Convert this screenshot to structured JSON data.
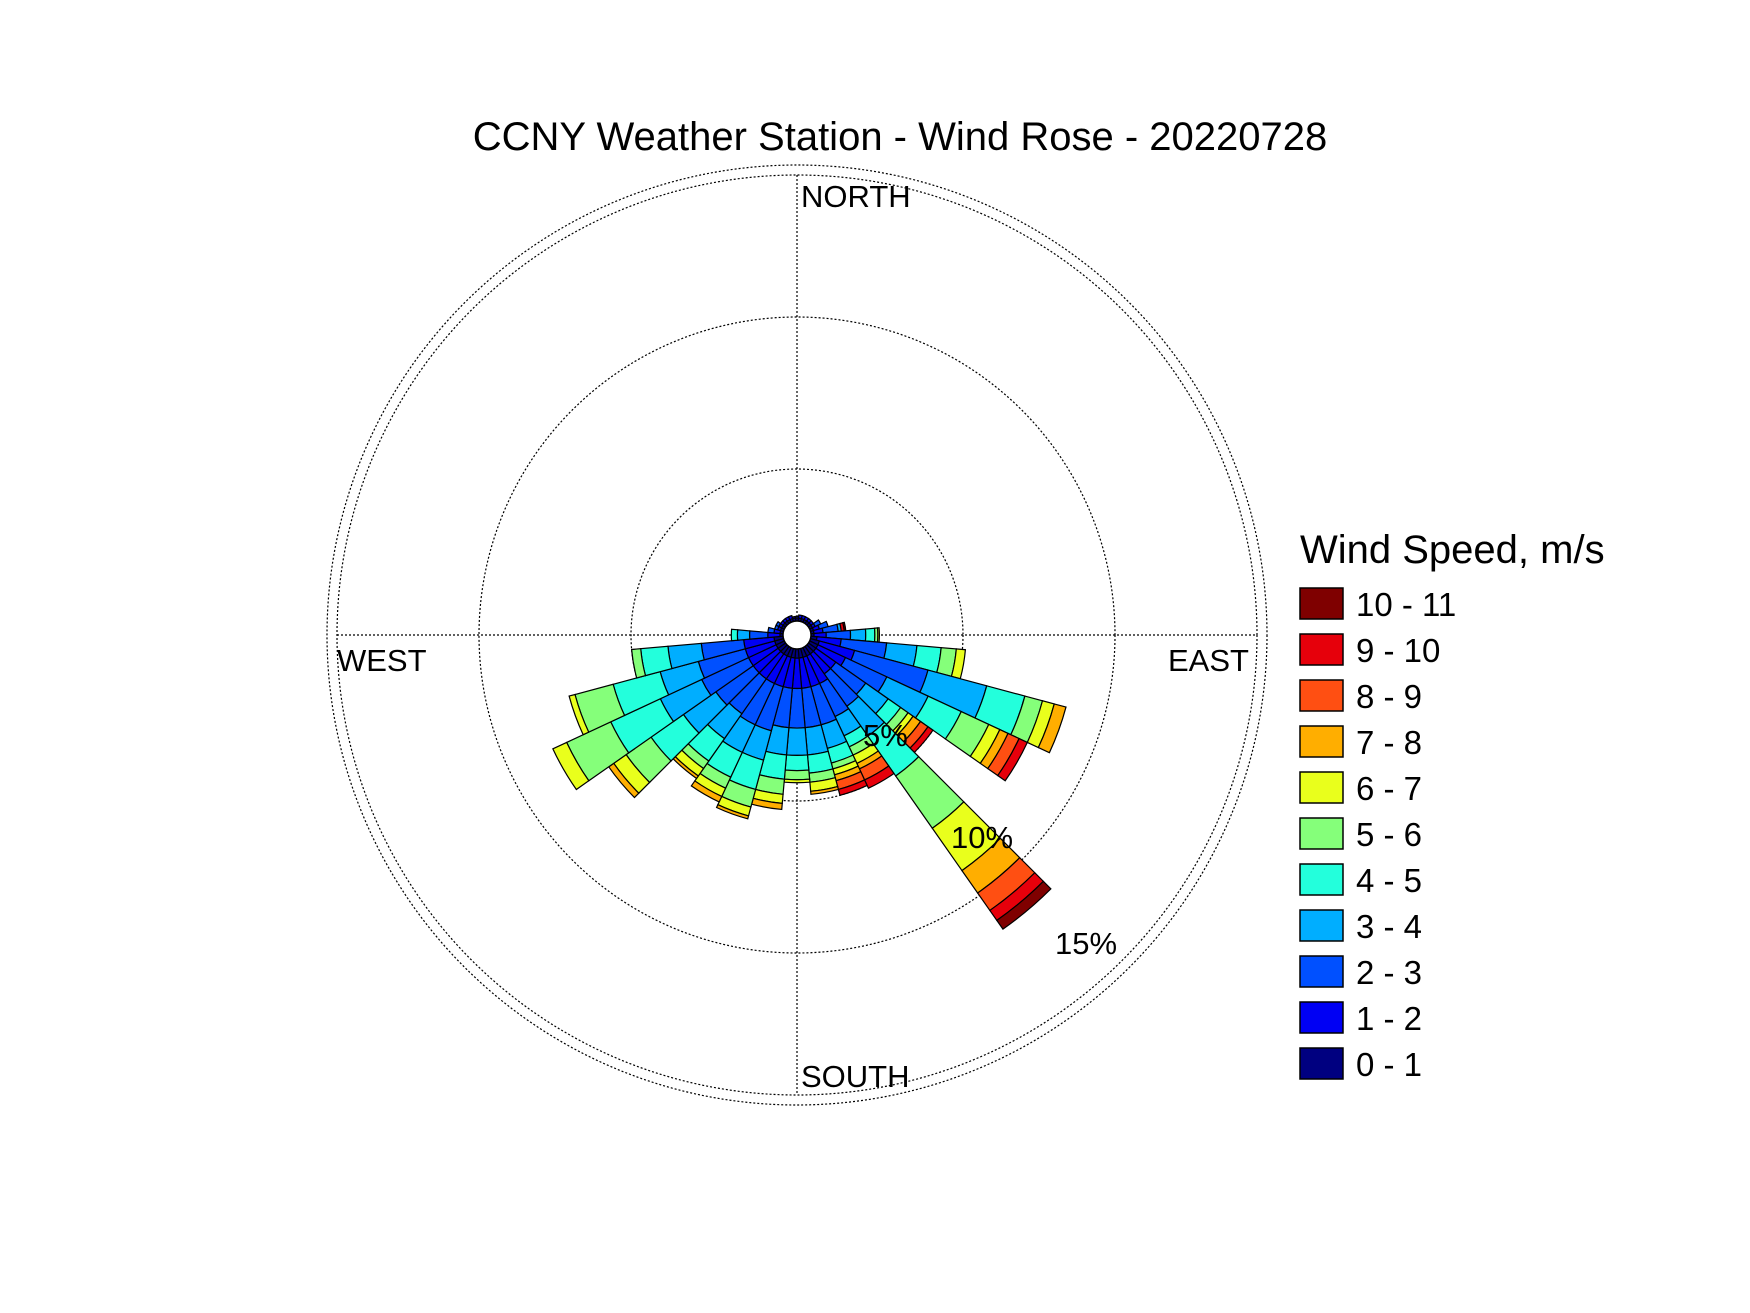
{
  "chart_data": {
    "type": "wind-rose",
    "title": "CCNY Weather Station - Wind Rose - 20220728",
    "direction_labels": {
      "north": "NORTH",
      "east": "EAST",
      "south": "SOUTH",
      "west": "WEST"
    },
    "rings": [
      {
        "value": 5,
        "label": "5%"
      },
      {
        "value": 10,
        "label": "10%"
      },
      {
        "value": 15,
        "label": "15%"
      }
    ],
    "legend": {
      "title": "Wind Speed, m/s",
      "bins": [
        {
          "label": "10 - 11",
          "color": "#7f0000"
        },
        {
          "label": "9 - 10",
          "color": "#e6000b"
        },
        {
          "label": "8 - 9",
          "color": "#ff4f12"
        },
        {
          "label": "7 - 8",
          "color": "#ffae00"
        },
        {
          "label": "6 - 7",
          "color": "#e9ff1c"
        },
        {
          "label": "5 - 6",
          "color": "#85ff7a"
        },
        {
          "label": "4 - 5",
          "color": "#23ffdc"
        },
        {
          "label": "3 - 4",
          "color": "#00aeff"
        },
        {
          "label": "2 - 3",
          "color": "#0050ff"
        },
        {
          "label": "1 - 2",
          "color": "#0000f4"
        },
        {
          "label": "0 - 1",
          "color": "#000080"
        }
      ]
    },
    "bin_colors_low_to_high": [
      "#000080",
      "#0000f4",
      "#0050ff",
      "#00aeff",
      "#23ffdc",
      "#85ff7a",
      "#e9ff1c",
      "#ffae00",
      "#ff4f12",
      "#e6000b",
      "#7f0000"
    ],
    "sector_width_deg": 10,
    "sectors": [
      {
        "dir": 0,
        "pcts": [
          0.1,
          0.05
        ]
      },
      {
        "dir": 10,
        "pcts": [
          0.1,
          0.1
        ]
      },
      {
        "dir": 20,
        "pcts": [
          0.1,
          0.1
        ]
      },
      {
        "dir": 30,
        "pcts": [
          0.1,
          0.1
        ]
      },
      {
        "dir": 40,
        "pcts": [
          0.1,
          0.1
        ]
      },
      {
        "dir": 50,
        "pcts": [
          0.1,
          0.1
        ]
      },
      {
        "dir": 60,
        "pcts": [
          0.1,
          0.1,
          0.2
        ]
      },
      {
        "dir": 70,
        "pcts": [
          0.1,
          0.2,
          0.3
        ]
      },
      {
        "dir": 80,
        "pcts": [
          0.1,
          0.3,
          0.5,
          0.1,
          0,
          0,
          0,
          0,
          0,
          0.1,
          0.05
        ]
      },
      {
        "dir": 90,
        "pcts": [
          0.1,
          0.4,
          0.8,
          0.5,
          0.3,
          0.1,
          0.05
        ]
      },
      {
        "dir": 100,
        "pcts": [
          0.2,
          0.8,
          1.5,
          1.0,
          0.8,
          0.5,
          0.3
        ]
      },
      {
        "dir": 110,
        "pcts": [
          0.3,
          1.2,
          2.5,
          2.0,
          1.3,
          0.6,
          0.4,
          0.4
        ]
      },
      {
        "dir": 120,
        "pcts": [
          0.3,
          1.0,
          1.5,
          1.5,
          1.2,
          1.0,
          0.4,
          0.3,
          0.4,
          0.3
        ]
      },
      {
        "dir": 130,
        "pcts": [
          0.3,
          0.8,
          1.2,
          0.9,
          0.5,
          0.3,
          0.2,
          0.3,
          0.3,
          0.2
        ]
      },
      {
        "dir": 140,
        "pcts": [
          0.3,
          0.8,
          1.3,
          1.2,
          1.6,
          2.1,
          1.7,
          0.9,
          0.7,
          0.4,
          0.35
        ]
      },
      {
        "dir": 150,
        "pcts": [
          0.3,
          1.0,
          1.2,
          0.7,
          0.4,
          0.3,
          0.3,
          0.2,
          0.4,
          0.3
        ]
      },
      {
        "dir": 160,
        "pcts": [
          0.3,
          1.0,
          1.3,
          0.8,
          0.5,
          0.2,
          0.2,
          0.2,
          0.3,
          0.2
        ]
      },
      {
        "dir": 170,
        "pcts": [
          0.3,
          1.0,
          1.3,
          0.9,
          0.6,
          0.3,
          0.3,
          0.1
        ]
      },
      {
        "dir": 180,
        "pcts": [
          0.3,
          1.0,
          1.3,
          0.9,
          0.5,
          0.3,
          0.1
        ]
      },
      {
        "dir": 190,
        "pcts": [
          0.3,
          1.0,
          1.3,
          0.9,
          0.8,
          0.5,
          0.3,
          0.2
        ]
      },
      {
        "dir": 200,
        "pcts": [
          0.3,
          1.0,
          1.5,
          1.0,
          1.0,
          0.6,
          0.3,
          0.1
        ]
      },
      {
        "dir": 210,
        "pcts": [
          0.3,
          1.0,
          1.5,
          1.0,
          0.9,
          0.4,
          0.3,
          0.2
        ]
      },
      {
        "dir": 220,
        "pcts": [
          0.3,
          1.0,
          1.4,
          1.0,
          0.9,
          0.3,
          0.3,
          0.1
        ]
      },
      {
        "dir": 230,
        "pcts": [
          0.3,
          1.0,
          1.5,
          1.3,
          1.3,
          1.0,
          0.5,
          0.2
        ]
      },
      {
        "dir": 240,
        "pcts": [
          0.3,
          1.0,
          1.7,
          1.5,
          1.8,
          1.6,
          0.5
        ]
      },
      {
        "dir": 250,
        "pcts": [
          0.3,
          1.0,
          1.6,
          1.3,
          1.6,
          1.3,
          0.2
        ]
      },
      {
        "dir": 260,
        "pcts": [
          0.3,
          1.0,
          1.4,
          1.1,
          0.9,
          0.3
        ]
      },
      {
        "dir": 270,
        "pcts": [
          0.1,
          0.4,
          0.6,
          0.4,
          0.2
        ]
      },
      {
        "dir": 280,
        "pcts": [
          0.1,
          0.2,
          0.2
        ]
      },
      {
        "dir": 290,
        "pcts": [
          0.1,
          0.1,
          0.1
        ]
      },
      {
        "dir": 300,
        "pcts": [
          0.1,
          0.1,
          0.1
        ]
      },
      {
        "dir": 310,
        "pcts": [
          0.1,
          0.1
        ]
      },
      {
        "dir": 320,
        "pcts": [
          0.1,
          0.1
        ]
      },
      {
        "dir": 330,
        "pcts": [
          0.1,
          0.1
        ]
      },
      {
        "dir": 340,
        "pcts": [
          0.1,
          0.1
        ]
      },
      {
        "dir": 350,
        "pcts": [
          0.1,
          0.05
        ]
      }
    ]
  }
}
